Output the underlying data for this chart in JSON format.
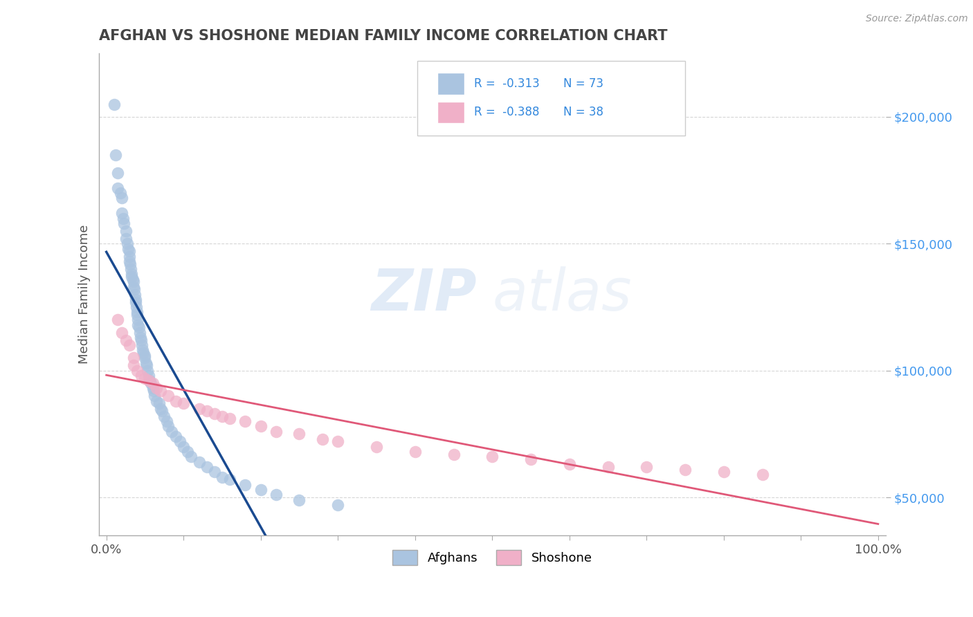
{
  "title": "AFGHAN VS SHOSHONE MEDIAN FAMILY INCOME CORRELATION CHART",
  "source": "Source: ZipAtlas.com",
  "ylabel": "Median Family Income",
  "xlim": [
    -1,
    101
  ],
  "ylim": [
    35000,
    225000
  ],
  "yticks": [
    50000,
    100000,
    150000,
    200000
  ],
  "ytick_labels": [
    "$50,000",
    "$100,000",
    "$150,000",
    "$200,000"
  ],
  "xtick_positions": [
    0,
    10,
    20,
    30,
    40,
    50,
    60,
    70,
    80,
    90,
    100
  ],
  "xtick_labels": [
    "0.0%",
    "",
    "",
    "",
    "",
    "",
    "",
    "",
    "",
    "",
    "100.0%"
  ],
  "afghan_color": "#aac4e0",
  "shoshone_color": "#f0b0c8",
  "afghan_line_color": "#1a4a90",
  "shoshone_line_color": "#e05878",
  "watermark_zip": "ZIP",
  "watermark_atlas": "atlas",
  "legend_r1": "-0.313",
  "legend_n1": "73",
  "legend_r2": "-0.388",
  "legend_n2": "38",
  "afghan_x": [
    1.0,
    1.2,
    1.5,
    1.5,
    1.8,
    2.0,
    2.0,
    2.2,
    2.3,
    2.5,
    2.5,
    2.7,
    2.8,
    3.0,
    3.0,
    3.0,
    3.1,
    3.2,
    3.3,
    3.3,
    3.4,
    3.5,
    3.5,
    3.6,
    3.7,
    3.8,
    3.8,
    3.9,
    4.0,
    4.0,
    4.1,
    4.1,
    4.2,
    4.3,
    4.4,
    4.5,
    4.6,
    4.7,
    4.8,
    5.0,
    5.0,
    5.1,
    5.2,
    5.3,
    5.5,
    5.6,
    5.8,
    6.0,
    6.1,
    6.2,
    6.5,
    6.8,
    7.0,
    7.2,
    7.5,
    7.8,
    8.0,
    8.5,
    9.0,
    9.5,
    10.0,
    10.5,
    11.0,
    12.0,
    13.0,
    14.0,
    15.0,
    16.0,
    18.0,
    20.0,
    22.0,
    25.0,
    30.0
  ],
  "afghan_y": [
    205000,
    185000,
    178000,
    172000,
    170000,
    168000,
    162000,
    160000,
    158000,
    155000,
    152000,
    150000,
    148000,
    147000,
    145000,
    143000,
    142000,
    140000,
    138000,
    137000,
    136000,
    135000,
    133000,
    132000,
    130000,
    128000,
    127000,
    125000,
    123000,
    122000,
    120000,
    118000,
    117000,
    115000,
    113000,
    112000,
    110000,
    108000,
    107000,
    106000,
    105000,
    103000,
    102000,
    100000,
    98000,
    96000,
    95000,
    93000,
    92000,
    90000,
    88000,
    87000,
    85000,
    84000,
    82000,
    80000,
    78000,
    76000,
    74000,
    72000,
    70000,
    68000,
    66000,
    64000,
    62000,
    60000,
    58000,
    57000,
    55000,
    53000,
    51000,
    49000,
    47000
  ],
  "shoshone_x": [
    1.5,
    2.0,
    2.5,
    3.0,
    3.5,
    3.5,
    4.0,
    4.5,
    5.0,
    5.5,
    6.0,
    6.5,
    7.0,
    8.0,
    9.0,
    10.0,
    12.0,
    13.0,
    14.0,
    15.0,
    16.0,
    18.0,
    20.0,
    22.0,
    25.0,
    28.0,
    30.0,
    35.0,
    40.0,
    45.0,
    50.0,
    55.0,
    60.0,
    65.0,
    70.0,
    75.0,
    80.0,
    85.0
  ],
  "shoshone_y": [
    120000,
    115000,
    112000,
    110000,
    105000,
    102000,
    100000,
    98000,
    97000,
    96000,
    95000,
    93000,
    92000,
    90000,
    88000,
    87000,
    85000,
    84000,
    83000,
    82000,
    81000,
    80000,
    78000,
    76000,
    75000,
    73000,
    72000,
    70000,
    68000,
    67000,
    66000,
    65000,
    63000,
    62000,
    62000,
    61000,
    60000,
    59000
  ]
}
